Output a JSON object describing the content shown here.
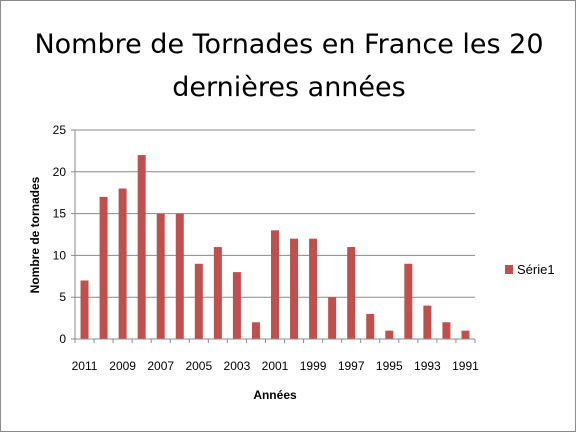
{
  "chart_data": {
    "type": "bar",
    "title_lines": [
      "Nombre de Tornades en France les 20",
      "dernières années"
    ],
    "xlabel": "Années",
    "ylabel": "Nombre de tornades",
    "categories": [
      "2011",
      "2010",
      "2009",
      "2008",
      "2007",
      "2006",
      "2005",
      "2004",
      "2003",
      "2002",
      "2001",
      "2000",
      "1999",
      "1998",
      "1997",
      "1996",
      "1995",
      "1994",
      "1993",
      "1992",
      "1991"
    ],
    "x_tick_labels": [
      "2011",
      "2009",
      "2007",
      "2005",
      "2003",
      "2001",
      "1999",
      "1997",
      "1995",
      "1993",
      "1991"
    ],
    "series": [
      {
        "name": "Série1",
        "color": "#c0504d",
        "values": [
          7,
          17,
          18,
          22,
          15,
          15,
          9,
          11,
          8,
          2,
          13,
          12,
          12,
          5,
          11,
          3,
          1,
          9,
          4,
          2,
          1
        ]
      }
    ],
    "ylim": [
      0,
      25
    ],
    "yticks": [
      0,
      5,
      10,
      15,
      20,
      25
    ],
    "grid": true,
    "legend_position": "right"
  }
}
